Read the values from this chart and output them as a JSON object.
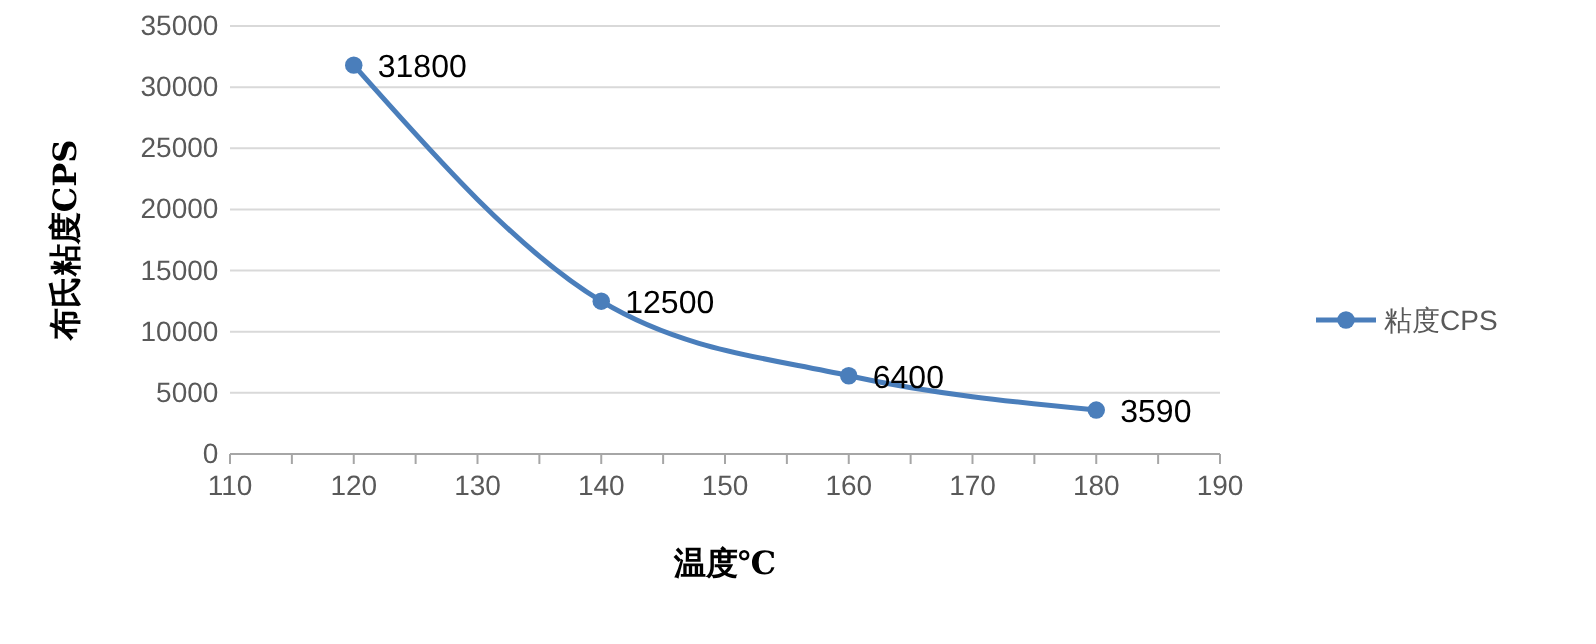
{
  "chart_data": {
    "type": "line",
    "xlabel": "温度℃",
    "ylabel": "布氏粘度CPS",
    "x": [
      120,
      140,
      160,
      180
    ],
    "series": [
      {
        "name": "粘度CPS",
        "color": "#4a7ebb",
        "values": [
          31800,
          12500,
          6400,
          3590
        ]
      }
    ],
    "xlim": [
      110,
      190
    ],
    "xticks": [
      110,
      {
        "value": 115,
        "label": null
      },
      120,
      {
        "value": 125,
        "label": null
      },
      130,
      {
        "value": 135,
        "label": null
      },
      140,
      {
        "value": 145,
        "label": null
      },
      150,
      {
        "value": 155,
        "label": null
      },
      160,
      {
        "value": 165,
        "label": null
      },
      170,
      {
        "value": 175,
        "label": null
      },
      180,
      {
        "value": 185,
        "label": null
      },
      190
    ],
    "ylim": [
      0,
      35000
    ],
    "yticks": [
      0,
      5000,
      10000,
      15000,
      20000,
      25000,
      30000,
      35000
    ],
    "grid": "y",
    "legend": "right",
    "marker": "circle",
    "line_style": "solid",
    "data_labels": true
  }
}
